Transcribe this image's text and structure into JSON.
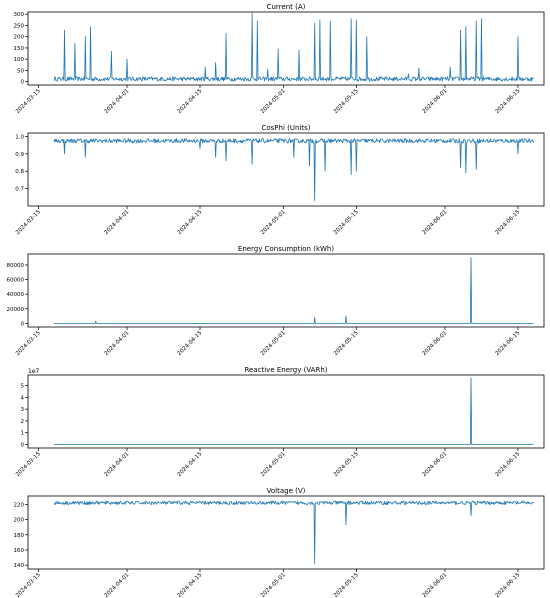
{
  "colors": {
    "line": "#1f77b4",
    "axis": "#000000"
  },
  "xticks": [
    "2024-03-15",
    "2024-04-01",
    "2024-04-15",
    "2024-05-01",
    "2024-05-15",
    "2024-06-01",
    "2024-06-15"
  ],
  "chart_data": [
    {
      "type": "line",
      "title": "Current (A)",
      "xlabel": "",
      "ylabel": "",
      "x_range": [
        "2024-03-18",
        "2024-06-18"
      ],
      "xlim": [
        "2024-03-13",
        "2024-06-20"
      ],
      "ylim": [
        -15,
        310
      ],
      "yticks": [
        0,
        50,
        100,
        150,
        200,
        250,
        300
      ],
      "yticklabels": [
        "0",
        "50",
        "100",
        "150",
        "200",
        "250",
        "300"
      ],
      "baseline": 12,
      "spikes": [
        [
          "2024-03-20",
          230
        ],
        [
          "2024-03-22",
          170
        ],
        [
          "2024-03-24",
          200
        ],
        [
          "2024-03-25",
          245
        ],
        [
          "2024-03-29",
          135
        ],
        [
          "2024-04-01",
          100
        ],
        [
          "2024-04-16",
          65
        ],
        [
          "2024-04-18",
          85
        ],
        [
          "2024-04-20",
          215
        ],
        [
          "2024-04-25",
          305
        ],
        [
          "2024-04-26",
          270
        ],
        [
          "2024-04-28",
          55
        ],
        [
          "2024-04-30",
          145
        ],
        [
          "2024-05-04",
          140
        ],
        [
          "2024-05-07",
          260
        ],
        [
          "2024-05-08",
          275
        ],
        [
          "2024-05-10",
          270
        ],
        [
          "2024-05-14",
          280
        ],
        [
          "2024-05-15",
          275
        ],
        [
          "2024-05-17",
          200
        ],
        [
          "2024-05-25",
          35
        ],
        [
          "2024-05-27",
          60
        ],
        [
          "2024-06-02",
          65
        ],
        [
          "2024-06-04",
          230
        ],
        [
          "2024-06-05",
          245
        ],
        [
          "2024-06-07",
          270
        ],
        [
          "2024-06-08",
          280
        ],
        [
          "2024-06-15",
          200
        ]
      ],
      "dips": []
    },
    {
      "type": "line",
      "title": "CosPhi (Units)",
      "xlabel": "",
      "ylabel": "",
      "x_range": [
        "2024-03-18",
        "2024-06-18"
      ],
      "xlim": [
        "2024-03-13",
        "2024-06-20"
      ],
      "ylim": [
        0.6,
        1.02
      ],
      "yticks": [
        0.7,
        0.8,
        0.9,
        1.0
      ],
      "yticklabels": [
        "0.7",
        "0.8",
        "0.9",
        "1.0"
      ],
      "baseline": 0.975,
      "spikes": [],
      "dips": [
        [
          "2024-03-20",
          0.9
        ],
        [
          "2024-03-24",
          0.88
        ],
        [
          "2024-04-15",
          0.93
        ],
        [
          "2024-04-18",
          0.88
        ],
        [
          "2024-04-20",
          0.86
        ],
        [
          "2024-04-25",
          0.84
        ],
        [
          "2024-05-03",
          0.88
        ],
        [
          "2024-05-06",
          0.83
        ],
        [
          "2024-05-07",
          0.63
        ],
        [
          "2024-05-09",
          0.8
        ],
        [
          "2024-05-14",
          0.78
        ],
        [
          "2024-05-15",
          0.8
        ],
        [
          "2024-06-04",
          0.82
        ],
        [
          "2024-06-05",
          0.79
        ],
        [
          "2024-06-07",
          0.81
        ],
        [
          "2024-06-15",
          0.9
        ]
      ]
    },
    {
      "type": "line",
      "title": "Energy Consumption (kWh)",
      "xlabel": "",
      "ylabel": "",
      "x_range": [
        "2024-03-18",
        "2024-06-18"
      ],
      "xlim": [
        "2024-03-13",
        "2024-06-20"
      ],
      "ylim": [
        -5000,
        95000
      ],
      "yticks": [
        0,
        20000,
        40000,
        60000,
        80000
      ],
      "yticklabels": [
        "0",
        "20000",
        "40000",
        "60000",
        "80000"
      ],
      "baseline": 0,
      "spikes": [
        [
          "2024-03-26",
          3000
        ],
        [
          "2024-05-07",
          8000
        ],
        [
          "2024-05-13",
          10000
        ],
        [
          "2024-06-06",
          90000
        ]
      ],
      "dips": []
    },
    {
      "type": "line",
      "title": "Reactive Energy (VARh)",
      "xlabel": "",
      "ylabel": "",
      "offset_text": "1e7",
      "x_range": [
        "2024-03-18",
        "2024-06-18"
      ],
      "xlim": [
        "2024-03-13",
        "2024-06-20"
      ],
      "ylim": [
        -0.3,
        5.9
      ],
      "yticks": [
        0,
        1,
        2,
        3,
        4,
        5
      ],
      "yticklabels": [
        "0",
        "1",
        "2",
        "3",
        "4",
        "5"
      ],
      "baseline": 0,
      "spikes": [
        [
          "2024-06-06",
          5.65
        ]
      ],
      "dips": []
    },
    {
      "type": "line",
      "title": "Voltage (V)",
      "xlabel": "",
      "ylabel": "",
      "x_range": [
        "2024-03-18",
        "2024-06-18"
      ],
      "xlim": [
        "2024-03-13",
        "2024-06-20"
      ],
      "ylim": [
        135,
        231
      ],
      "yticks": [
        140,
        160,
        180,
        200,
        220
      ],
      "yticklabels": [
        "140",
        "160",
        "180",
        "200",
        "220"
      ],
      "baseline": 222,
      "spikes": [],
      "dips": [
        [
          "2024-05-07",
          142
        ],
        [
          "2024-05-13",
          193
        ],
        [
          "2024-06-06",
          205
        ]
      ]
    }
  ]
}
